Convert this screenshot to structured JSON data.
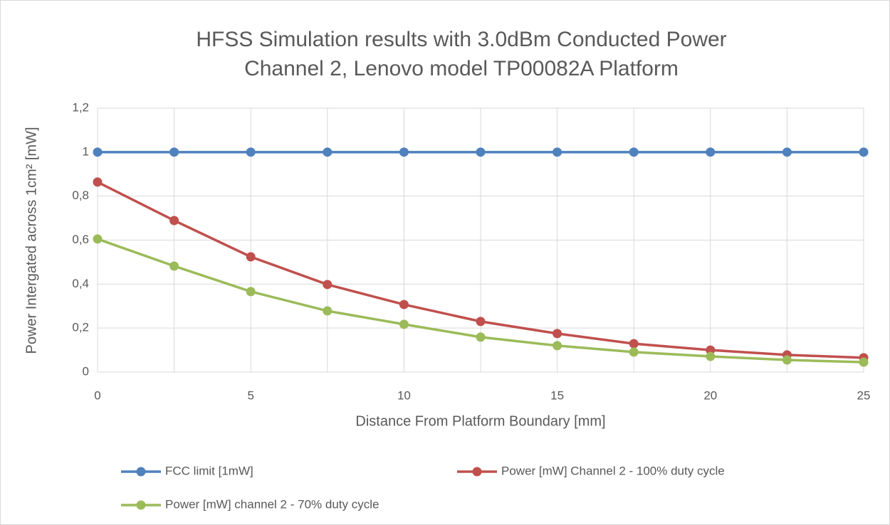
{
  "chart_data": {
    "type": "line",
    "title": "HFSS Simulation results with 3.0dBm Conducted Power",
    "subtitle": "Channel 2, Lenovo model TP00082A Platform",
    "xlabel": "Distance From Platform Boundary [mm]",
    "ylabel": "Power Intergated across 1cm² [mW]",
    "x": [
      0,
      2.5,
      5,
      7.5,
      10,
      12.5,
      15,
      17.5,
      20,
      22.5,
      25
    ],
    "series": [
      {
        "name": "FCC limit [1mW]",
        "color": "#4f81bd",
        "values": [
          1,
          1,
          1,
          1,
          1,
          1,
          1,
          1,
          1,
          1,
          1
        ]
      },
      {
        "name": "Power [mW] Channel 2 - 100% duty cycle",
        "color": "#c0504d",
        "values": [
          0.864,
          0.689,
          0.524,
          0.398,
          0.307,
          0.23,
          0.175,
          0.129,
          0.1,
          0.078,
          0.065
        ]
      },
      {
        "name": "Power [mW] channel 2 - 70% duty cycle",
        "color": "#9bbb59",
        "values": [
          0.605,
          0.482,
          0.366,
          0.278,
          0.217,
          0.159,
          0.12,
          0.091,
          0.071,
          0.055,
          0.045
        ]
      }
    ],
    "xlim": [
      0,
      25
    ],
    "xticks": [
      0,
      5,
      10,
      15,
      20,
      25
    ],
    "xminorticks": [
      2.5,
      7.5,
      12.5,
      17.5,
      22.5
    ],
    "ylim": [
      0,
      1.2
    ],
    "yticks": [
      0,
      {
        "value": 0.2,
        "label": "0,2"
      },
      {
        "value": 0.4,
        "label": "0,4"
      },
      {
        "value": 0.6,
        "label": "0,6"
      },
      {
        "value": 0.8,
        "label": "0,8"
      },
      1,
      {
        "value": 1.2,
        "label": "1,2"
      }
    ],
    "grid": true,
    "legend": "bottom"
  }
}
